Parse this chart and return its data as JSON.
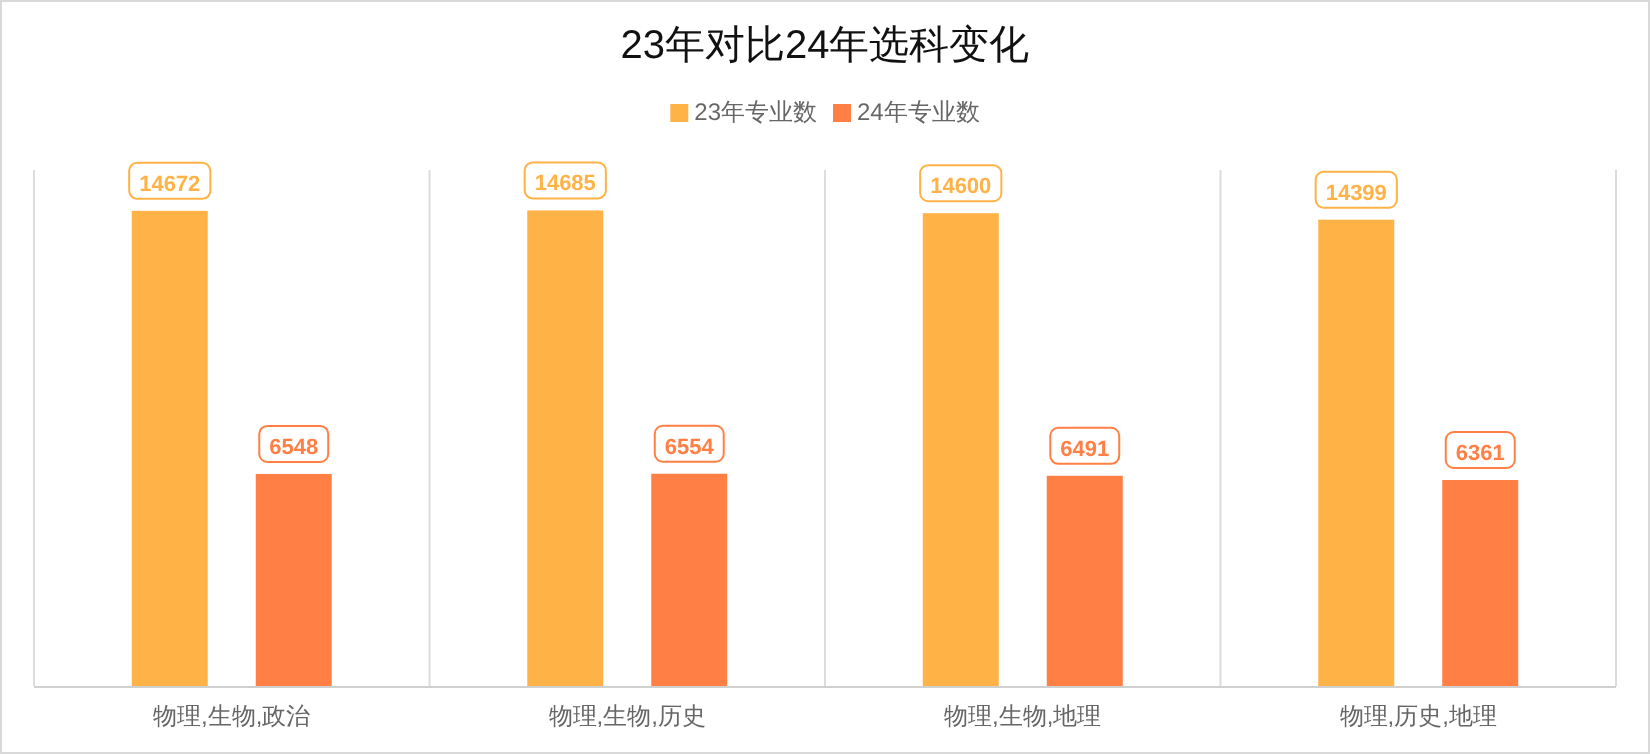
{
  "chart_data": {
    "type": "bar",
    "title": "23年对比24年选科变化",
    "categories": [
      "物理,生物,政治",
      "物理,生物,历史",
      "物理,生物,地理",
      "物理,历史,地理"
    ],
    "series": [
      {
        "name": "23年专业数",
        "color": "#ffb347",
        "values": [
          14672,
          14685,
          14600,
          14399
        ]
      },
      {
        "name": "24年专业数",
        "color": "#ff7f45",
        "values": [
          6548,
          6554,
          6491,
          6361
        ]
      }
    ],
    "data_labels": true,
    "legend": "top",
    "grid": "x"
  }
}
